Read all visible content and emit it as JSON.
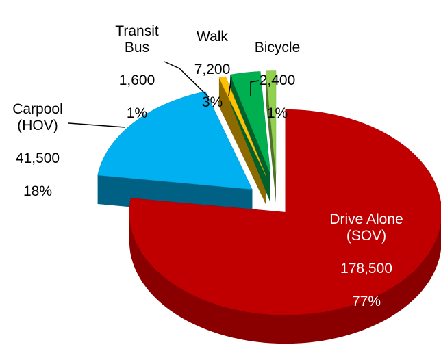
{
  "chart_data": {
    "type": "pie",
    "categories": [
      "Drive Alone\n(SOV)",
      "Carpool\n(HOV)",
      "Transit\nBus",
      "Walk",
      "Bicycle"
    ],
    "values": [
      178500,
      41500,
      1600,
      7200,
      2400
    ],
    "value_labels": [
      "178,500",
      "41,500",
      "1,600",
      "7,200",
      "2,400"
    ],
    "percents": [
      77,
      18,
      1,
      3,
      1
    ],
    "percent_labels": [
      "77%",
      "18%",
      "1%",
      "3%",
      "1%"
    ],
    "colors": [
      "#c00000",
      "#00b0f0",
      "#ffc000",
      "#00b050",
      "#92d050"
    ]
  }
}
